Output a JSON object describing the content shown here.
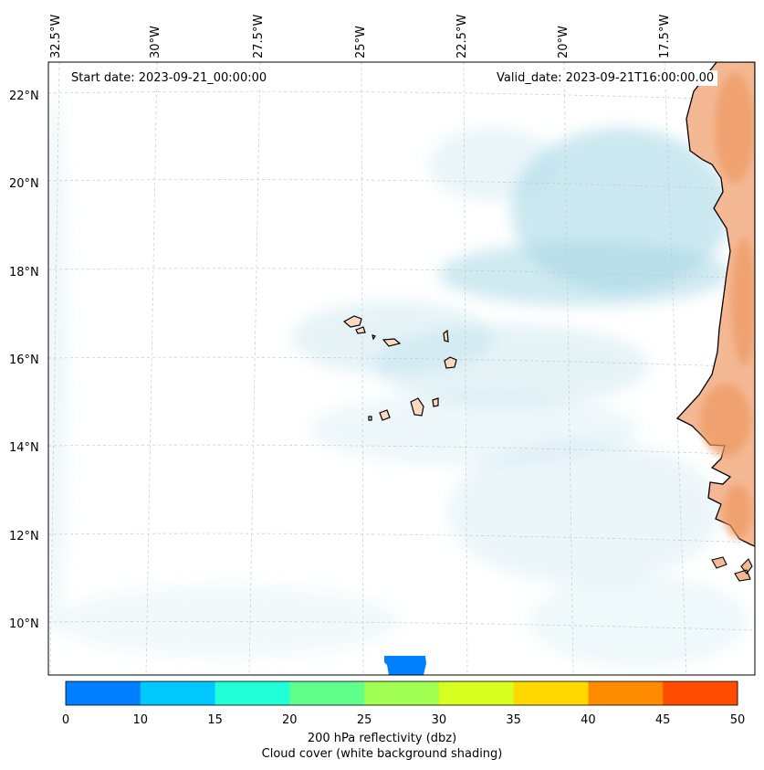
{
  "annotations": {
    "start_date": "Start date: 2023-09-21_00:00:00",
    "valid_date": "Valid_date: 2023-09-21T16:00:00.00"
  },
  "longitude_labels": [
    "32.5°W",
    "30°W",
    "27.5°W",
    "25°W",
    "22.5°W",
    "20°W",
    "17.5°W"
  ],
  "latitude_labels": [
    "22°N",
    "20°N",
    "18°N",
    "16°N",
    "14°N",
    "12°N",
    "10°N"
  ],
  "colorbar": {
    "ticks": [
      "0",
      "10",
      "15",
      "20",
      "25",
      "30",
      "35",
      "40",
      "45",
      "50"
    ],
    "colors": [
      "#0080ff",
      "#00c8ff",
      "#20ffd8",
      "#60ff8c",
      "#a0ff50",
      "#d8ff20",
      "#ffd800",
      "#ff8c00",
      "#ff4c00"
    ],
    "label_line1": "200 hPa reflectivity (dbz)",
    "label_line2": "Cloud cover (white background shading)"
  },
  "colors": {
    "land": "#f8c8a8",
    "land_hot": "#f0a070",
    "cloud": "#a8d8e6",
    "coastline": "#000000",
    "echo_blob": "#0080ff"
  }
}
